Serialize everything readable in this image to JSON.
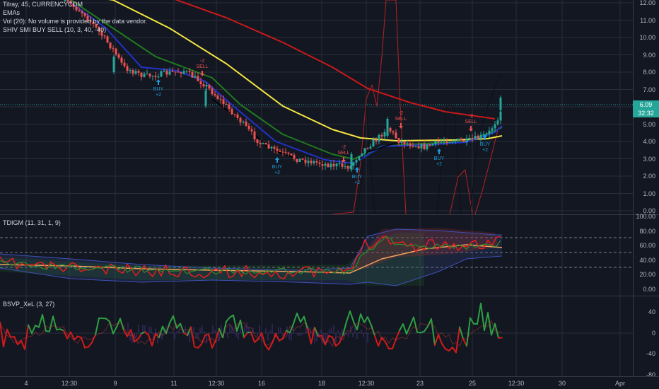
{
  "legend": {
    "symbol": "Tilray, 45, CURRENCYCOM",
    "emas": "EMAs",
    "vol": "Vol (20): No volume is provided by the data vendor.",
    "shiv": "SHIV SMI BUY SELL (10, 3, 40, -40)"
  },
  "price_scale": [
    "12.00",
    "11.00",
    "10.00",
    "9.00",
    "8.00",
    "7.00",
    "6.00",
    "5.00",
    "4.00",
    "3.00",
    "2.00",
    "1.00",
    "0.00"
  ],
  "last_price": "6.09",
  "countdown": "32:32",
  "tdi": {
    "title": "TDIGM (11, 31, 1, 9)",
    "scale": [
      "100.00",
      "80.00",
      "60.00",
      "40.00",
      "20.00",
      "0.00"
    ]
  },
  "bsvp": {
    "title": "BSVP_XeL (3, 27)",
    "scale": [
      "40",
      "0",
      "-40",
      "-80"
    ]
  },
  "time_axis": [
    "4",
    "12:30",
    "9",
    "11",
    "12:30",
    "16",
    "18",
    "12:30",
    "23",
    "25",
    "12:30",
    "30",
    "Apr"
  ],
  "signals": {
    "buy": "BUY",
    "sell": "SELL",
    "plus2": "+2",
    "minus2": "-2"
  },
  "colors": {
    "background": "#131722",
    "up": "#26a69a",
    "down": "#ef5350",
    "ema_black": "#000000",
    "ema_blue": "#2133c9",
    "ema_green": "#1f7a1f",
    "ema_yellow": "#f5e642",
    "ema_red": "#c8191a",
    "price_line": "#26a69a"
  }
}
